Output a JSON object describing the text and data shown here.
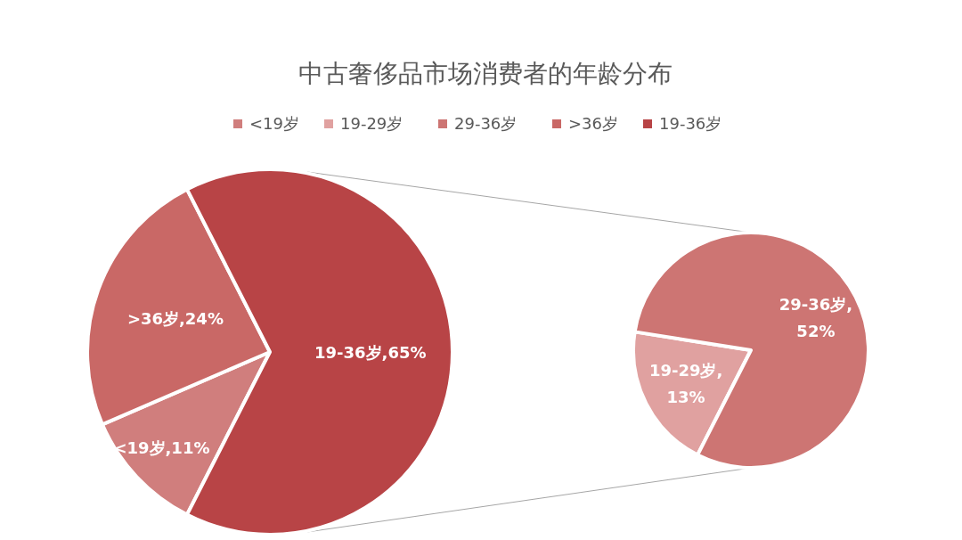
{
  "chart_data": {
    "type": "pie",
    "title": "中古奢侈品市场消费者的年龄分布",
    "legend": "top",
    "categories": [
      "<19岁",
      "19-29岁",
      "29-36岁",
      ">36岁",
      "19-36岁"
    ],
    "colors": [
      "#d07e7d",
      "#e0a1a0",
      "#cd7573",
      "#c96866",
      "#b84446"
    ],
    "series": [
      {
        "values": [
          11,
          null,
          null,
          24,
          65
        ],
        "value_labels": [
          "<19岁,11%",
          null,
          null,
          ">36岁,24%",
          "19-36岁,65%"
        ]
      },
      {
        "values": [
          null,
          13,
          52,
          null,
          null
        ],
        "value_labels": [
          null,
          "19-29岁,\n13%",
          "29-36岁,\n52%",
          null,
          null
        ]
      }
    ]
  }
}
